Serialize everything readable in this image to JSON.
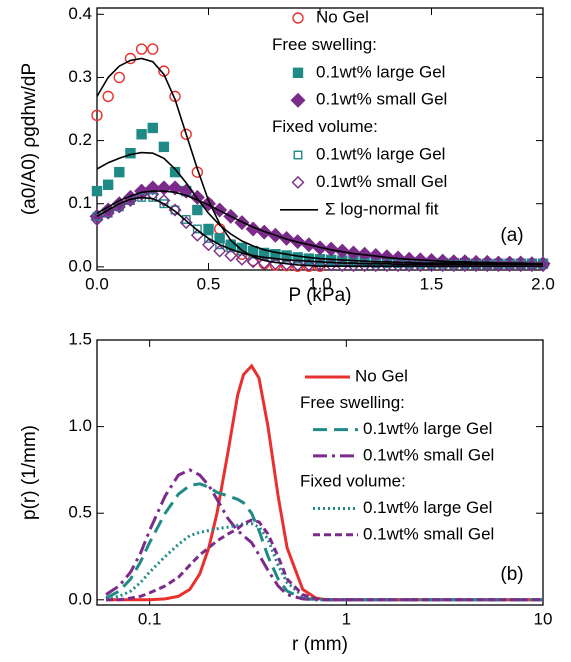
{
  "chart_data": [
    {
      "type": "scatter",
      "panel_label": "(a)",
      "x_label": "P  (kPa)",
      "y_label": "(a0/A0) ρgdhw/dP",
      "xlim": [
        0,
        2
      ],
      "xticks": [
        {
          "value": 0,
          "label": "0.0"
        },
        0.5,
        {
          "value": 1,
          "label": "1.0"
        },
        1.5,
        {
          "value": 2,
          "label": "2.0"
        }
      ],
      "ylim": [
        -0.005,
        0.41
      ],
      "yticks": [
        {
          "value": 0,
          "label": "0.0"
        },
        0.1,
        0.2,
        0.3,
        0.4
      ],
      "legend": "upper right",
      "groups": [
        "Free swelling:",
        "Fixed volume:"
      ],
      "x": [
        0,
        0.05,
        0.1,
        0.15,
        0.2,
        0.25,
        0.3,
        0.35,
        0.4,
        0.45,
        0.5,
        0.55,
        0.6,
        0.65,
        0.7,
        0.75,
        0.8,
        0.85,
        0.9,
        0.95,
        1,
        1.05,
        1.1,
        1.15,
        1.2,
        1.25,
        1.3,
        1.35,
        1.4,
        1.45,
        1.5,
        1.55,
        1.6,
        1.65,
        1.7,
        1.75,
        1.8,
        1.85,
        1.9,
        1.95,
        2
      ],
      "series": [
        {
          "name": "No Gel",
          "color": "#e8312f",
          "marker": "circle-open",
          "values": [
            0.24,
            0.27,
            0.3,
            0.33,
            0.345,
            0.345,
            0.31,
            0.27,
            0.21,
            0.15,
            0.1,
            0.06,
            0.035,
            0.02,
            0.01,
            0.005,
            0.003,
            0.002,
            0.001,
            0.001,
            0.001,
            null,
            null,
            null,
            null,
            null,
            null,
            null,
            null,
            null,
            null,
            null,
            null,
            null,
            null,
            null,
            null,
            null,
            null,
            null,
            null
          ]
        },
        {
          "name": "0.1wt% large Gel",
          "group": 0,
          "color": "#1f8a86",
          "marker": "square-filled",
          "values": [
            0.12,
            0.13,
            0.15,
            0.18,
            0.21,
            0.22,
            0.19,
            0.15,
            0.12,
            0.09,
            0.06,
            0.045,
            0.035,
            0.03,
            0.025,
            0.022,
            0.02,
            0.018,
            0.015,
            0.013,
            0.012,
            0.011,
            0.01,
            0.009,
            0.009,
            0.008,
            0.008,
            0.007,
            0.007,
            0.007,
            0.006,
            0.006,
            0.006,
            0.006,
            0.005,
            0.005,
            0.005,
            0.005,
            0.005,
            0.005,
            0.005
          ]
        },
        {
          "name": "0.1wt% small Gel",
          "group": 0,
          "color": "#7b2b8a",
          "marker": "diamond-filled",
          "values": [
            0.08,
            0.09,
            0.1,
            0.11,
            0.12,
            0.125,
            0.125,
            0.125,
            0.12,
            0.11,
            0.1,
            0.09,
            0.08,
            0.07,
            0.06,
            0.055,
            0.05,
            0.045,
            0.04,
            0.035,
            0.03,
            0.028,
            0.025,
            0.022,
            0.02,
            0.018,
            0.016,
            0.014,
            0.012,
            0.011,
            0.01,
            0.009,
            0.008,
            0.008,
            0.007,
            0.007,
            0.006,
            0.006,
            0.006,
            0.005,
            0.005
          ]
        },
        {
          "name": "0.1wt% large Gel",
          "group": 1,
          "color": "#1f8a86",
          "marker": "square-open",
          "values": [
            0.08,
            0.085,
            0.095,
            0.105,
            0.11,
            0.11,
            0.1,
            0.09,
            0.075,
            0.06,
            0.045,
            0.035,
            0.03,
            0.025,
            0.02,
            0.018,
            0.016,
            0.014,
            0.012,
            0.01,
            0.009,
            0.008,
            0.007,
            0.006,
            0.006,
            0.005,
            0.005,
            0.005,
            0.004,
            0.004,
            0.004,
            0.004,
            0.004,
            0.004,
            0.004,
            0.004,
            0.004,
            0.004,
            0.004,
            0.004,
            0.004
          ]
        },
        {
          "name": "0.1wt% small Gel",
          "group": 1,
          "color": "#7b2b8a",
          "marker": "diamond-open",
          "values": [
            0.075,
            0.085,
            0.095,
            0.105,
            0.115,
            0.115,
            0.105,
            0.09,
            0.07,
            0.05,
            0.035,
            0.025,
            0.018,
            0.012,
            0.008,
            0.006,
            0.005,
            0.004,
            0.003,
            0.003,
            0.003,
            0.003,
            0.002,
            0.002,
            0.002,
            0.002,
            0.002,
            0.002,
            0.002,
            0.002,
            0.002,
            0.002,
            0.002,
            0.002,
            0.002,
            0.002,
            0.002,
            0.002,
            0.002,
            0.002,
            0.002
          ]
        }
      ],
      "fits": {
        "name": "Σ log-normal fit",
        "color": "#000000",
        "lines": [
          [
            0.27,
            0.3,
            0.318,
            0.327,
            0.33,
            0.325,
            0.305,
            0.265,
            0.21,
            0.155,
            0.105,
            0.068,
            0.042,
            0.026,
            0.016,
            0.01,
            0.007,
            0.005,
            0.003,
            0.002,
            0.001,
            0.001,
            0.001,
            0.001,
            0.001,
            0.001,
            0.001,
            0.001,
            0.001,
            0.001,
            0.001,
            0.001,
            0.001,
            0.001,
            0.001,
            0.001,
            0.001,
            0.001,
            0.001,
            0.001,
            0.001
          ],
          [
            0.155,
            0.165,
            0.172,
            0.178,
            0.181,
            0.18,
            0.172,
            0.155,
            0.133,
            0.108,
            0.085,
            0.066,
            0.052,
            0.041,
            0.033,
            0.027,
            0.023,
            0.02,
            0.017,
            0.015,
            0.013,
            0.012,
            0.011,
            0.01,
            0.009,
            0.008,
            0.008,
            0.007,
            0.007,
            0.006,
            0.006,
            0.006,
            0.006,
            0.006,
            0.005,
            0.005,
            0.005,
            0.005,
            0.005,
            0.005,
            0.005
          ],
          [
            0.085,
            0.095,
            0.105,
            0.112,
            0.118,
            0.12,
            0.12,
            0.118,
            0.113,
            0.106,
            0.098,
            0.089,
            0.08,
            0.071,
            0.063,
            0.056,
            0.05,
            0.044,
            0.039,
            0.035,
            0.031,
            0.027,
            0.024,
            0.021,
            0.019,
            0.017,
            0.015,
            0.013,
            0.012,
            0.011,
            0.01,
            0.009,
            0.008,
            0.008,
            0.007,
            0.007,
            0.006,
            0.006,
            0.006,
            0.005,
            0.005
          ],
          [
            0.08,
            0.09,
            0.1,
            0.107,
            0.11,
            0.108,
            0.1,
            0.088,
            0.073,
            0.058,
            0.045,
            0.035,
            0.028,
            0.022,
            0.018,
            0.015,
            0.013,
            0.011,
            0.01,
            0.009,
            0.008,
            0.007,
            0.006,
            0.006,
            0.005,
            0.005,
            0.005,
            0.004,
            0.004,
            0.004,
            0.004,
            0.004,
            0.004,
            0.004,
            0.004,
            0.004,
            0.004,
            0.004,
            0.004,
            0.004,
            0.004
          ]
        ]
      }
    },
    {
      "type": "line",
      "panel_label": "(b)",
      "x_label": "r  (mm)",
      "y_label": "p(r)  (1/mm)",
      "xscale": "log",
      "xlim": [
        0.054,
        10
      ],
      "xticks": [
        0.1,
        1,
        10
      ],
      "ylim": [
        -0.03,
        1.5
      ],
      "yticks": [
        {
          "value": 0,
          "label": "0.0"
        },
        0.5,
        {
          "value": 1,
          "label": "1.0"
        },
        1.5
      ],
      "legend": "upper right",
      "groups": [
        "Free swelling:",
        "Fixed volume:"
      ],
      "x": [
        0.06,
        0.07,
        0.08,
        0.09,
        0.1,
        0.12,
        0.14,
        0.16,
        0.18,
        0.2,
        0.22,
        0.25,
        0.28,
        0.3,
        0.33,
        0.36,
        0.4,
        0.45,
        0.5,
        0.6,
        0.7,
        0.8,
        1,
        2,
        5,
        10
      ],
      "series": [
        {
          "name": "No Gel",
          "color": "#e8312f",
          "dash": "none",
          "width": 3,
          "values": [
            0,
            0,
            0,
            0,
            0,
            0.005,
            0.02,
            0.06,
            0.15,
            0.3,
            0.5,
            0.85,
            1.18,
            1.3,
            1.35,
            1.28,
            1,
            0.6,
            0.3,
            0.06,
            0.01,
            0,
            0,
            0,
            0,
            0
          ]
        },
        {
          "name": "0.1wt% large Gel",
          "group": 0,
          "color": "#1f8a86",
          "dash": "14 7",
          "width": 3,
          "values": [
            0.01,
            0.05,
            0.12,
            0.22,
            0.33,
            0.5,
            0.61,
            0.66,
            0.67,
            0.65,
            0.62,
            0.6,
            0.58,
            0.56,
            0.5,
            0.4,
            0.25,
            0.12,
            0.05,
            0.01,
            0,
            0,
            0,
            0,
            0,
            0
          ]
        },
        {
          "name": "0.1wt% small Gel",
          "group": 0,
          "color": "#7b2b8a",
          "dash": "14 5 3 5",
          "width": 3,
          "values": [
            0.03,
            0.08,
            0.16,
            0.27,
            0.4,
            0.6,
            0.72,
            0.75,
            0.72,
            0.66,
            0.58,
            0.47,
            0.4,
            0.37,
            0.33,
            0.26,
            0.17,
            0.08,
            0.03,
            0.005,
            0,
            0,
            0,
            0,
            0,
            0
          ]
        },
        {
          "name": "0.1wt% large Gel",
          "group": 1,
          "color": "#1f8a86",
          "dash": "2 3",
          "width": 3,
          "values": [
            0.005,
            0.02,
            0.05,
            0.1,
            0.16,
            0.25,
            0.32,
            0.37,
            0.39,
            0.4,
            0.41,
            0.42,
            0.43,
            0.44,
            0.44,
            0.42,
            0.35,
            0.2,
            0.1,
            0.02,
            0,
            0,
            0,
            0,
            0,
            0
          ]
        },
        {
          "name": "0.1wt% small Gel",
          "group": 1,
          "color": "#7b2b8a",
          "dash": "7 4",
          "width": 3,
          "values": [
            0,
            0,
            0.01,
            0.02,
            0.04,
            0.08,
            0.13,
            0.2,
            0.26,
            0.3,
            0.34,
            0.38,
            0.41,
            0.44,
            0.46,
            0.45,
            0.38,
            0.25,
            0.12,
            0.03,
            0.005,
            0,
            0,
            0,
            0,
            0
          ]
        }
      ]
    }
  ]
}
